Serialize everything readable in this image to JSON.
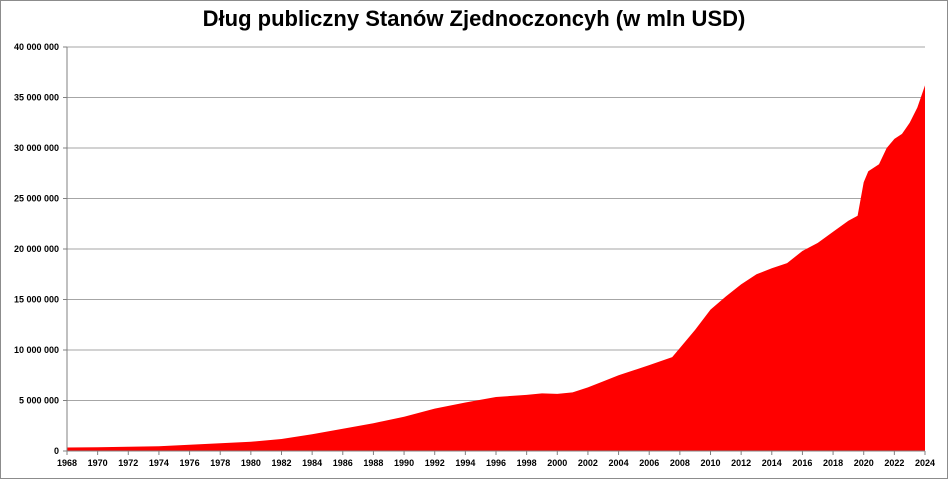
{
  "chart_data": {
    "type": "area",
    "title": "Dług publiczny Stanów Zjednoczoncyh (w mln USD)",
    "xlabel": "",
    "ylabel": "",
    "xlim": [
      1968,
      2024
    ],
    "ylim": [
      0,
      40000000
    ],
    "x_ticks": [
      "1968",
      "1970",
      "1972",
      "1974",
      "1976",
      "1978",
      "1980",
      "1982",
      "1984",
      "1986",
      "1988",
      "1990",
      "1992",
      "1994",
      "1996",
      "1998",
      "2000",
      "2002",
      "2004",
      "2006",
      "2008",
      "2010",
      "2012",
      "2014",
      "2016",
      "2018",
      "2020",
      "2022",
      "2024"
    ],
    "y_ticks": [
      "0",
      "5 000 000",
      "10 000 000",
      "15 000 000",
      "20 000 000",
      "25 000 000",
      "30 000 000",
      "35 000 000",
      "40 000 000"
    ],
    "grid": true,
    "legend": "none",
    "colors": {
      "area": "#ff0000",
      "grid": "#a6a6a6",
      "axis": "#808080"
    },
    "series": [
      {
        "x": [
          1968,
          1970,
          1972,
          1974,
          1976,
          1978,
          1980,
          1982,
          1984,
          1986,
          1988,
          1990,
          1992,
          1994,
          1996,
          1998,
          1999,
          2000,
          2001,
          2002,
          2004,
          2006,
          2007.5,
          2008,
          2009,
          2010,
          2011,
          2012,
          2013,
          2014,
          2015,
          2016,
          2017,
          2018,
          2019,
          2019.6,
          2020,
          2020.3,
          2021,
          2021.5,
          2022,
          2022.5,
          2023,
          2023.5,
          2024
        ],
        "values": [
          350000,
          380000,
          430000,
          480000,
          620000,
          770000,
          910000,
          1190000,
          1650000,
          2200000,
          2750000,
          3400000,
          4200000,
          4800000,
          5350000,
          5550000,
          5700000,
          5650000,
          5800000,
          6300000,
          7500000,
          8500000,
          9300000,
          10200000,
          12000000,
          14000000,
          15300000,
          16500000,
          17500000,
          18100000,
          18600000,
          19800000,
          20600000,
          21700000,
          22800000,
          23300000,
          26600000,
          27700000,
          28400000,
          30000000,
          30900000,
          31400000,
          32500000,
          34000000,
          36200000
        ]
      }
    ]
  }
}
